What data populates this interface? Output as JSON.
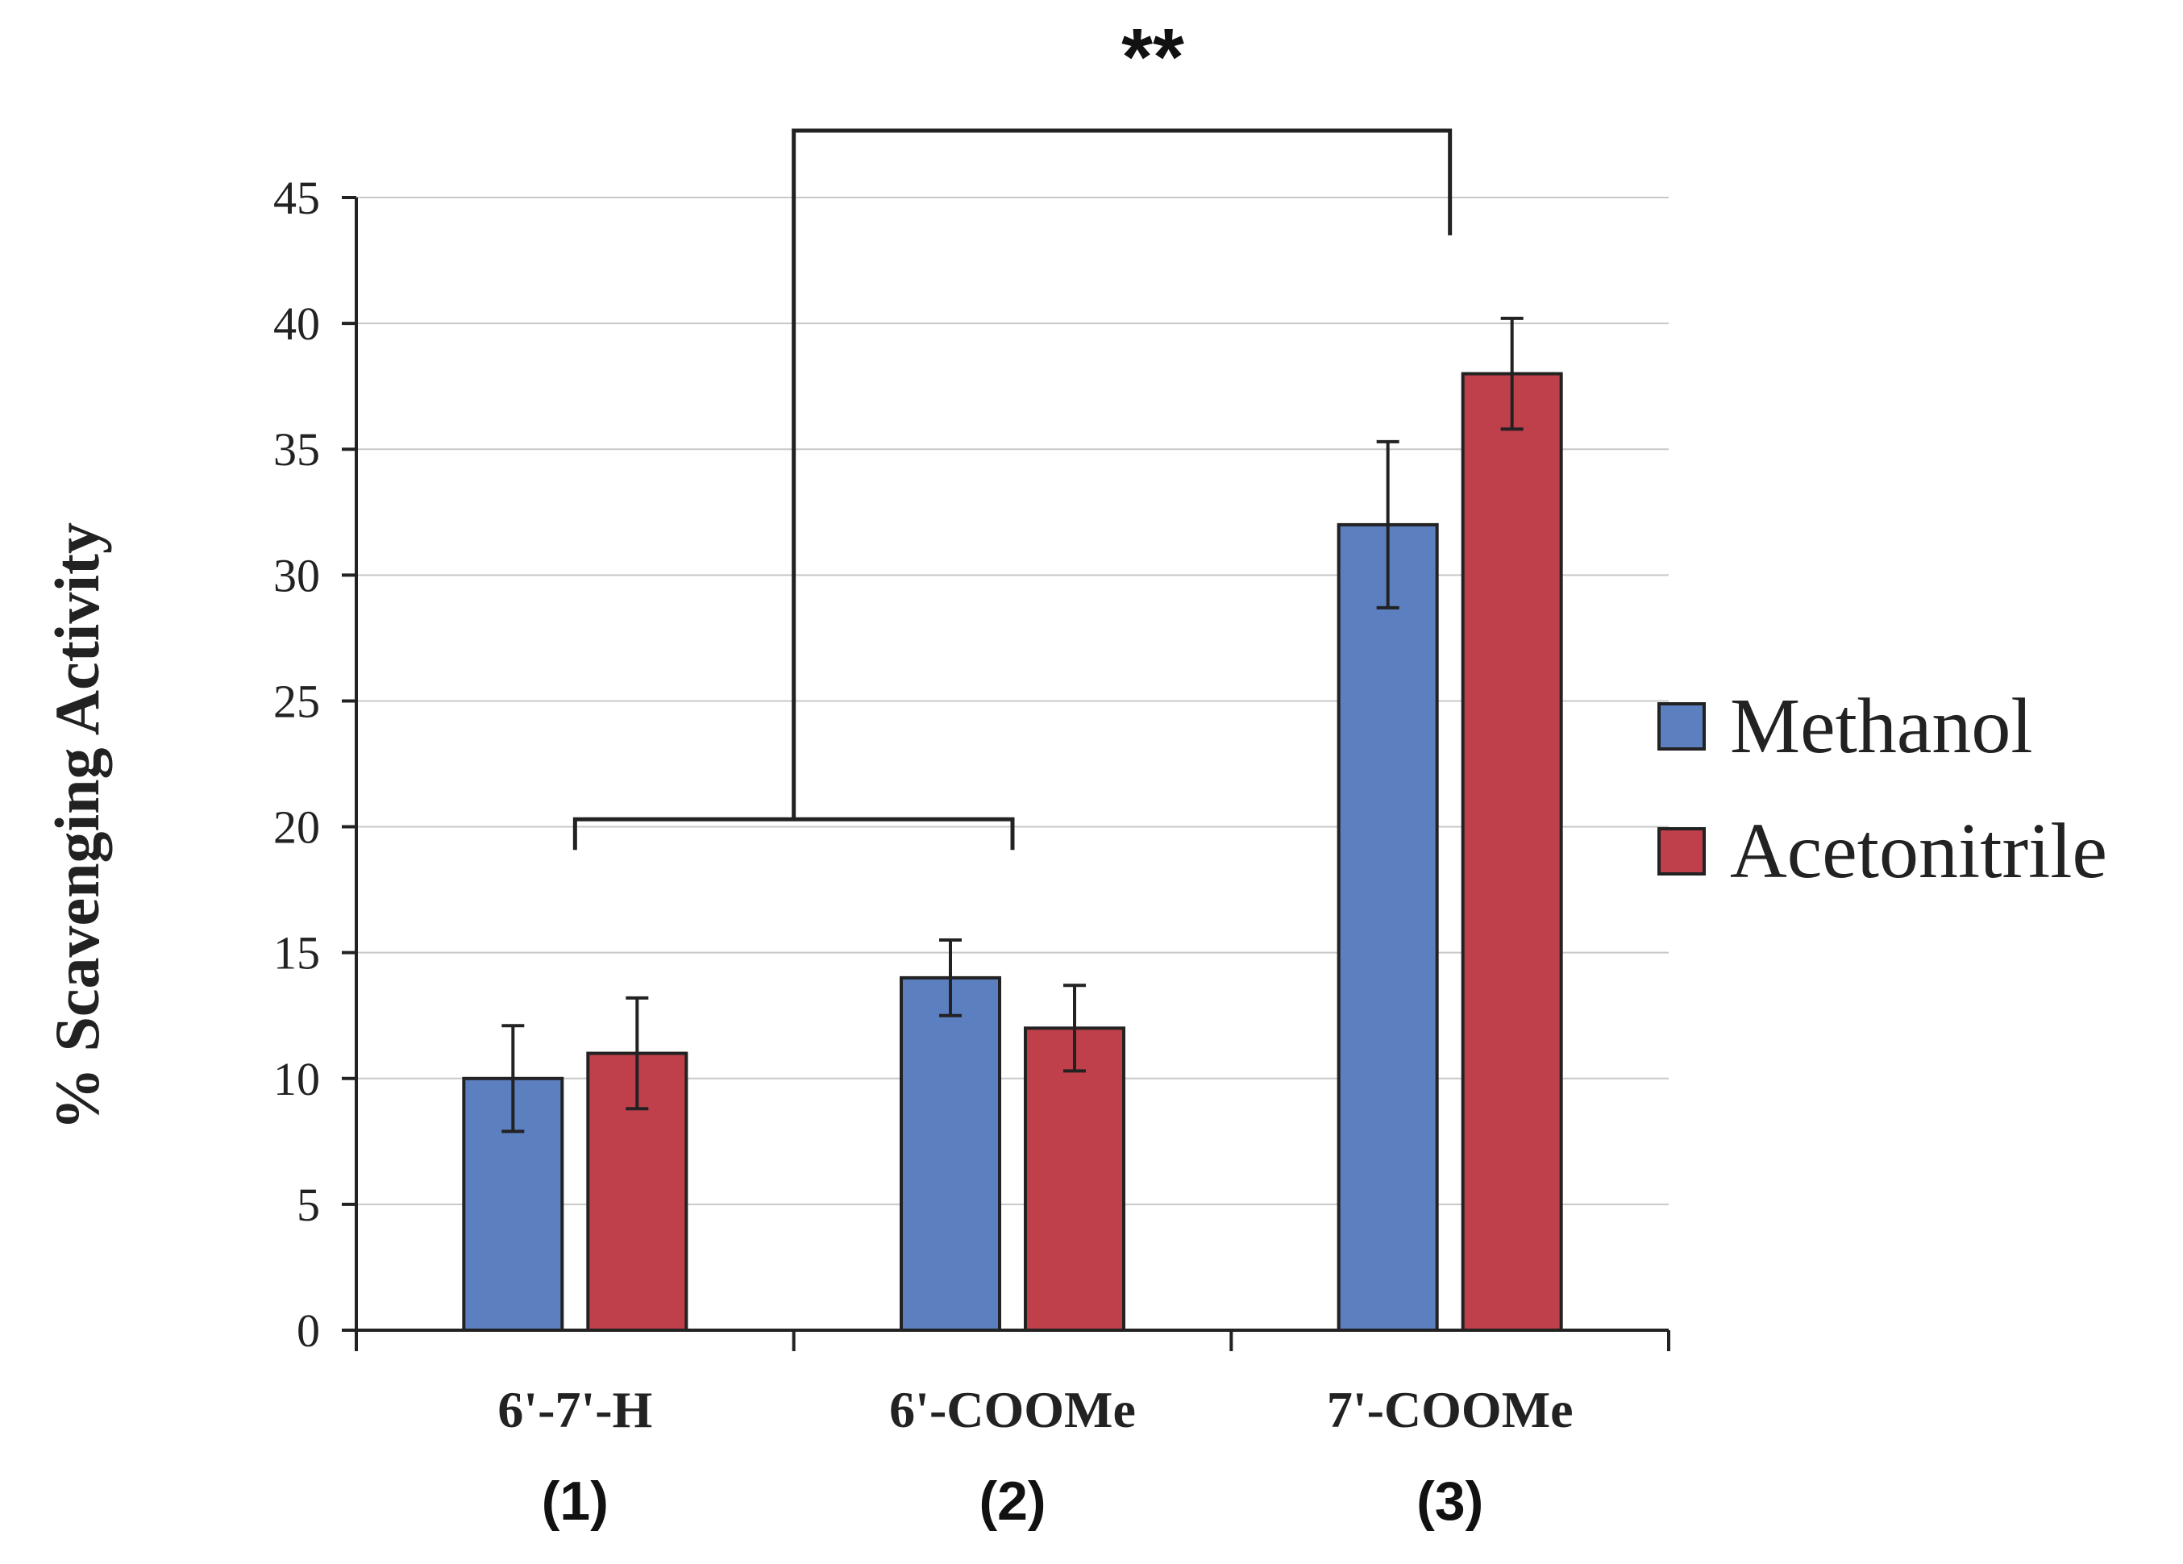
{
  "chart_data": {
    "type": "bar",
    "title": "",
    "xlabel": "",
    "ylabel": "% Scavenging Activity",
    "ylim": [
      0,
      45
    ],
    "yticks": [
      0,
      5,
      10,
      15,
      20,
      25,
      30,
      35,
      40,
      45
    ],
    "grid": true,
    "legend_position": "right",
    "categories": [
      "6'-7'-H",
      "6'-COOMe",
      "7'-COOMe"
    ],
    "category_numbers": [
      "(1)",
      "(2)",
      "(3)"
    ],
    "series": [
      {
        "name": "Methanol",
        "color": "#5b7fbf",
        "values": [
          10,
          14,
          32
        ],
        "errors": [
          2.1,
          1.5,
          3.3
        ]
      },
      {
        "name": "Acetonitrile",
        "color": "#bf3f4a",
        "values": [
          11,
          12,
          38
        ],
        "errors": [
          2.2,
          1.7,
          2.2
        ]
      }
    ],
    "significance": {
      "label": "**",
      "left_group": [
        "6'-7'-H",
        "6'-COOMe"
      ],
      "right_group": "7'-COOMe"
    }
  }
}
